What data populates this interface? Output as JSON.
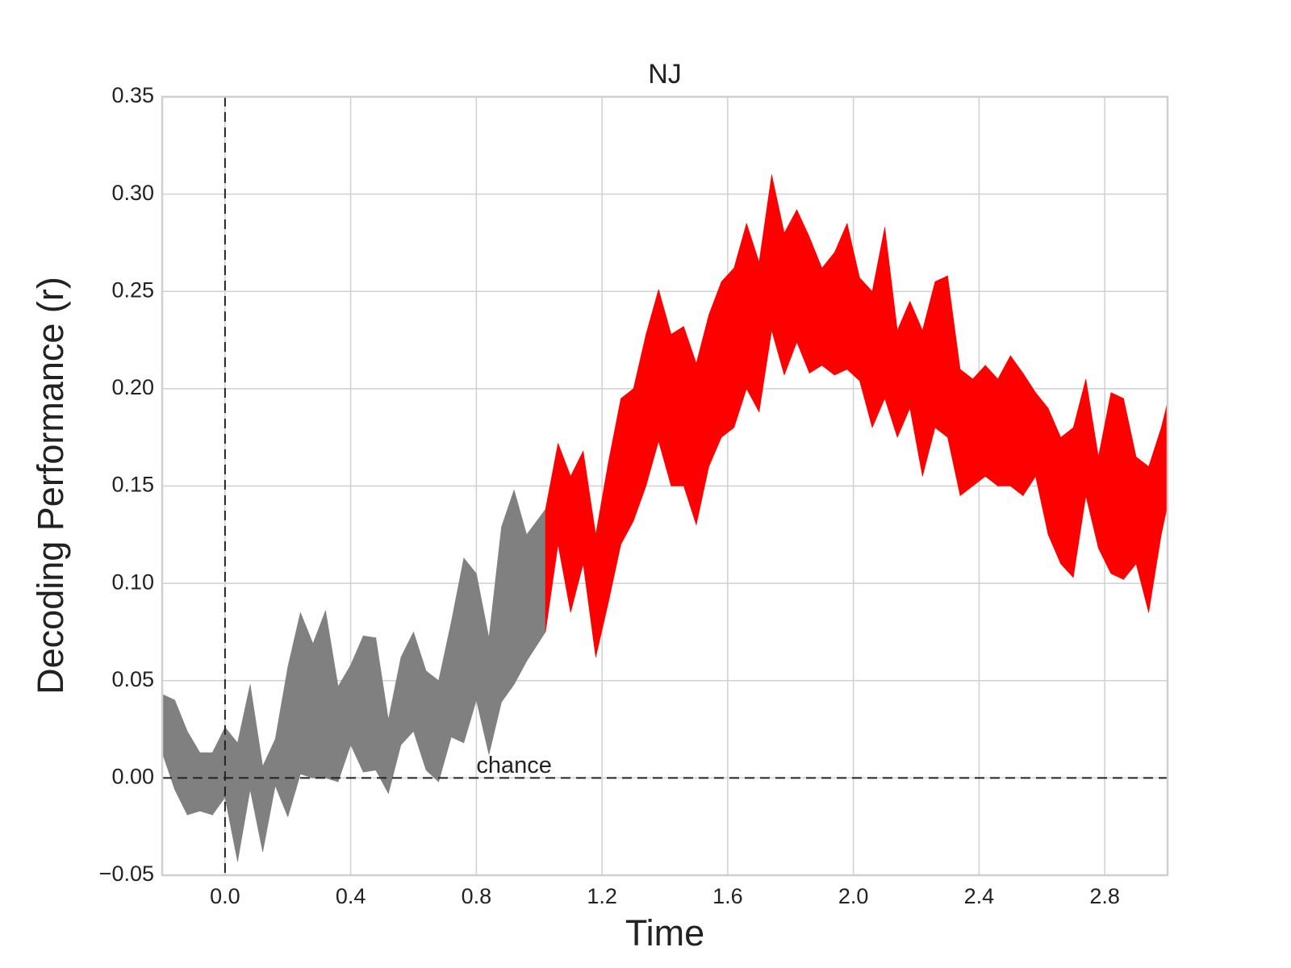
{
  "chart_data": {
    "type": "band",
    "title": "NJ",
    "x_label": "Time",
    "y_label": "Decoding Performance (r)",
    "xlim": [
      -0.2,
      3.0
    ],
    "ylim": [
      -0.05,
      0.35
    ],
    "xticks": [
      {
        "value": 0,
        "label": "0.0"
      },
      0.4,
      0.8,
      1.2,
      1.6,
      {
        "value": 2,
        "label": "2.0"
      },
      2.4,
      2.8
    ],
    "yticks": [
      {
        "value": -0.05,
        "label": "−0.05"
      },
      {
        "value": 0,
        "label": "0.00"
      },
      0.05,
      {
        "value": 0.1,
        "label": "0.10"
      },
      0.15,
      {
        "value": 0.2,
        "label": "0.20"
      },
      0.25,
      {
        "value": 0.3,
        "label": "0.30"
      },
      0.35
    ],
    "grid": true,
    "vline": 0,
    "hline": 0,
    "annotation": {
      "text": "chance",
      "x": 0.8,
      "y": 0
    },
    "series": [
      {
        "color": "#808080",
        "x": [
          -0.2,
          -0.16,
          -0.12,
          -0.08,
          -0.04,
          0,
          0.04,
          0.08,
          0.12,
          0.16,
          0.2,
          0.24,
          0.28,
          0.32,
          0.36,
          0.4,
          0.44,
          0.48,
          0.52,
          0.56,
          0.6,
          0.64,
          0.68,
          0.72,
          0.76,
          0.8,
          0.84,
          0.88,
          0.92,
          0.96,
          1.02
        ],
        "lower": [
          0.013,
          -0.006,
          -0.019,
          -0.017,
          -0.019,
          -0.01,
          -0.043,
          -0.006,
          -0.038,
          -0.004,
          -0.02,
          0.002,
          0,
          0,
          -0.002,
          0.017,
          0.003,
          0.004,
          -0.008,
          0.017,
          0.024,
          0.004,
          -0.002,
          0.021,
          0.018,
          0.04,
          0.012,
          0.039,
          0.048,
          0.06,
          0.075
        ],
        "upper": [
          0.043,
          0.04,
          0.024,
          0.013,
          0.013,
          0.026,
          0.018,
          0.048,
          0.006,
          0.02,
          0.057,
          0.085,
          0.069,
          0.086,
          0.047,
          0.058,
          0.073,
          0.072,
          0.03,
          0.062,
          0.075,
          0.055,
          0.05,
          0.08,
          0.113,
          0.105,
          0.072,
          0.129,
          0.148,
          0.125,
          0.138
        ]
      },
      {
        "color": "#ff0000",
        "x": [
          1.02,
          1.06,
          1.1,
          1.14,
          1.18,
          1.22,
          1.26,
          1.3,
          1.34,
          1.38,
          1.42,
          1.46,
          1.5,
          1.54,
          1.58,
          1.62,
          1.66,
          1.7,
          1.74,
          1.78,
          1.82,
          1.86,
          1.9,
          1.94,
          1.98,
          2.02,
          2.06,
          2.1,
          2.14,
          2.18,
          2.22,
          2.26,
          2.3,
          2.34,
          2.38,
          2.42,
          2.46,
          2.5,
          2.54,
          2.58,
          2.62,
          2.66,
          2.7,
          2.74,
          2.78,
          2.82,
          2.86,
          2.9,
          2.94,
          2.98,
          3.0
        ],
        "lower": [
          0.075,
          0.12,
          0.085,
          0.11,
          0.062,
          0.09,
          0.12,
          0.132,
          0.15,
          0.173,
          0.15,
          0.15,
          0.13,
          0.16,
          0.175,
          0.18,
          0.2,
          0.188,
          0.23,
          0.207,
          0.224,
          0.208,
          0.212,
          0.207,
          0.21,
          0.204,
          0.18,
          0.195,
          0.175,
          0.19,
          0.155,
          0.18,
          0.175,
          0.145,
          0.15,
          0.155,
          0.15,
          0.15,
          0.145,
          0.155,
          0.125,
          0.11,
          0.103,
          0.145,
          0.118,
          0.105,
          0.102,
          0.11,
          0.085,
          0.125,
          0.14
        ],
        "upper": [
          0.138,
          0.172,
          0.155,
          0.168,
          0.125,
          0.162,
          0.195,
          0.2,
          0.228,
          0.251,
          0.228,
          0.232,
          0.213,
          0.238,
          0.255,
          0.262,
          0.285,
          0.265,
          0.31,
          0.28,
          0.292,
          0.278,
          0.262,
          0.27,
          0.285,
          0.257,
          0.25,
          0.283,
          0.23,
          0.245,
          0.23,
          0.255,
          0.258,
          0.21,
          0.205,
          0.212,
          0.205,
          0.217,
          0.208,
          0.198,
          0.19,
          0.175,
          0.18,
          0.205,
          0.165,
          0.198,
          0.195,
          0.165,
          0.16,
          0.18,
          0.193
        ]
      }
    ]
  }
}
